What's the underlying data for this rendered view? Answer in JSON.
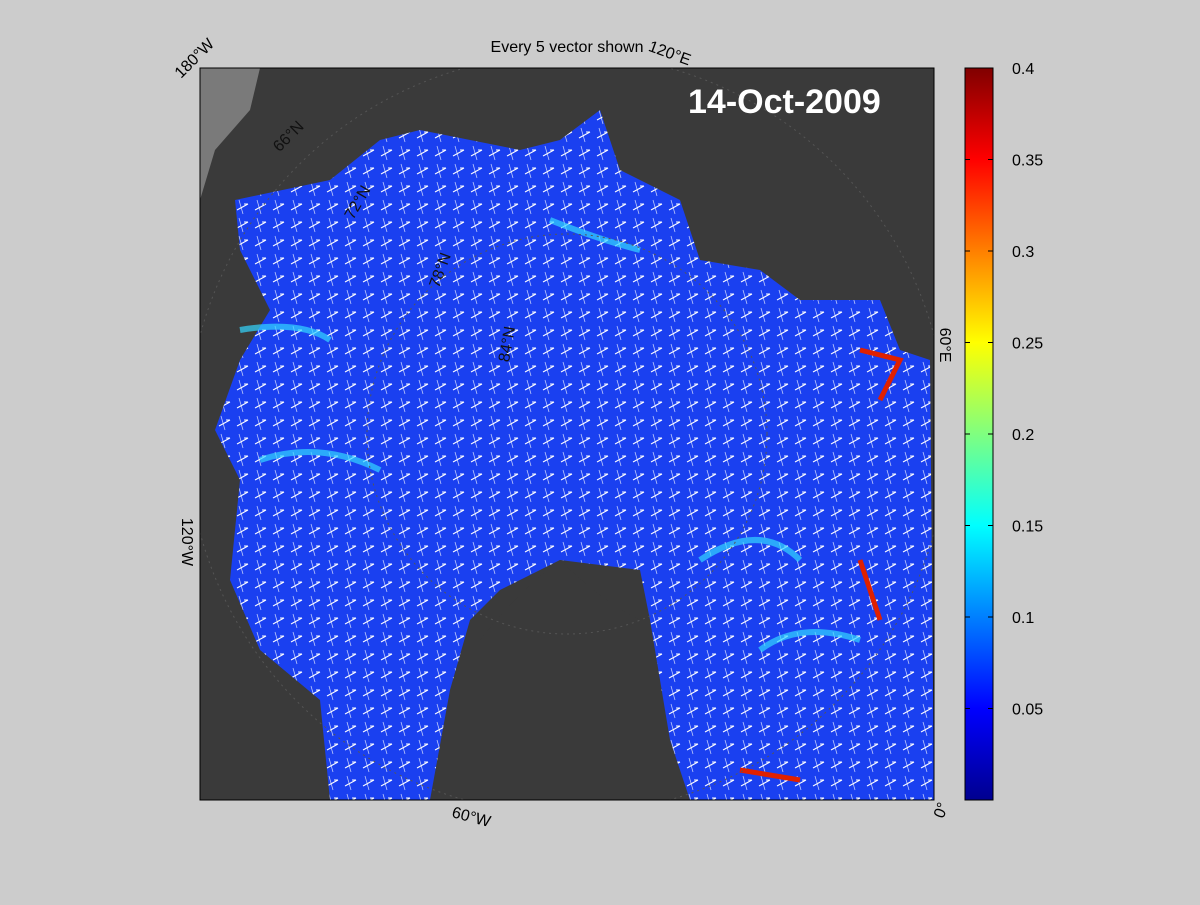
{
  "title": "Every 5 vector shown",
  "date_label": "14-Oct-2009",
  "map": {
    "lon_labels": [
      "180°W",
      "120°E",
      "60°E",
      "0°",
      "60°W",
      "120°W"
    ],
    "lat_labels": [
      "66°N",
      "72°N",
      "78°N",
      "84°N"
    ]
  },
  "colorbar": {
    "lim": [
      0,
      0.4
    ],
    "ticks": [
      0.05,
      0.1,
      0.15,
      0.2,
      0.25,
      0.3,
      0.35,
      0.4
    ]
  }
}
